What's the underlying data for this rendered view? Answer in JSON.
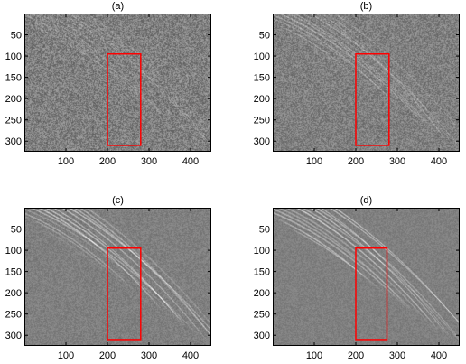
{
  "figure": {
    "x_ticks": [
      "100",
      "200",
      "300",
      "400"
    ],
    "y_ticks": [
      "50",
      "100",
      "150",
      "200",
      "250",
      "300"
    ],
    "axis_ranges": {
      "x": [
        0,
        450
      ],
      "y": [
        0,
        325
      ]
    },
    "y_reversed": true,
    "highlight_color": "#ff0000",
    "background_gray": "#808080",
    "panels": [
      {
        "label": "(a)",
        "noise": 0.55,
        "signal": 0.35,
        "roi": {
          "x": [
            200,
            280
          ],
          "y": [
            95,
            310
          ]
        }
      },
      {
        "label": "(b)",
        "noise": 0.45,
        "signal": 0.55,
        "roi": {
          "x": [
            200,
            280
          ],
          "y": [
            95,
            310
          ]
        }
      },
      {
        "label": "(c)",
        "noise": 0.25,
        "signal": 1.0,
        "roi": {
          "x": [
            200,
            280
          ],
          "y": [
            95,
            310
          ]
        }
      },
      {
        "label": "(d)",
        "noise": 0.2,
        "signal": 1.1,
        "roi": {
          "x": [
            200,
            275
          ],
          "y": [
            95,
            310
          ]
        }
      }
    ]
  }
}
